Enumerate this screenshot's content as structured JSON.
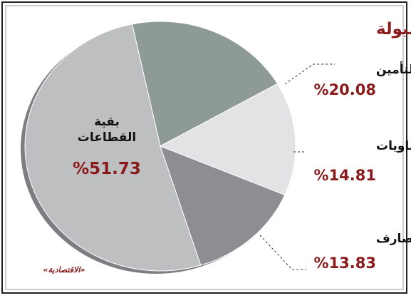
{
  "chart_data": {
    "type": "pie",
    "title": "توزيع السيولة",
    "categories": [
      "التأمين",
      "البتروكيماويات",
      "المصارف",
      "بقية القطاعات"
    ],
    "values": [
      20.08,
      14.81,
      13.83,
      51.73
    ],
    "value_labels": [
      "%20.08",
      "%14.81",
      "%13.83",
      "%51.73"
    ],
    "colors": [
      "#8e9a95",
      "#e3e3e5",
      "#8e8e92",
      "#bebfc1"
    ],
    "source": "«الاقتصادية»"
  }
}
